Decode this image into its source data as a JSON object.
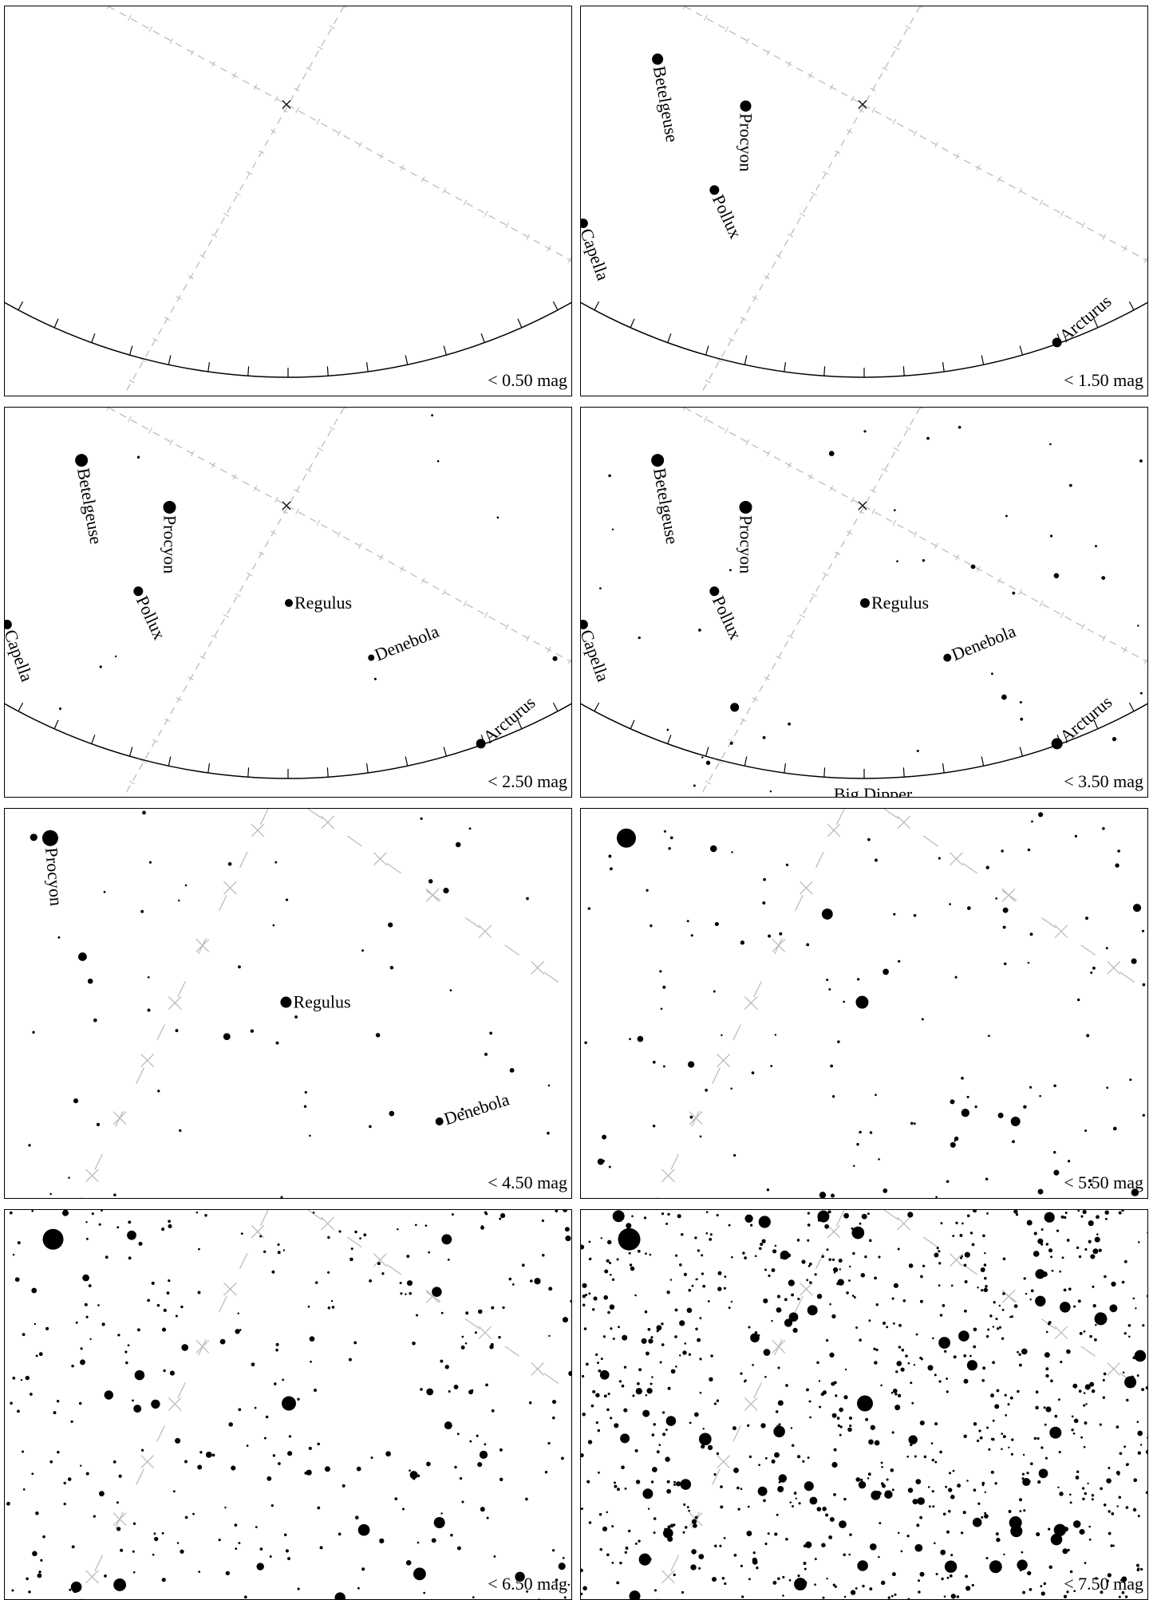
{
  "panels": [
    {
      "label": "< 0.50 mag",
      "mode": "wide",
      "limit_mag": 0.5,
      "stars": []
    },
    {
      "label": "< 1.50 mag",
      "mode": "wide",
      "limit_mag": 1.5,
      "stars": [
        {
          "name": "Betelgeuse",
          "lx": 0.135,
          "ly": 0.135,
          "r": 7,
          "rot": 80
        },
        {
          "name": "Procyon",
          "lx": 0.29,
          "ly": 0.255,
          "r": 7,
          "rot": 90
        },
        {
          "name": "Pollux",
          "lx": 0.235,
          "ly": 0.47,
          "r": 6,
          "rot": 65
        },
        {
          "name": "Capella",
          "lx": 0.004,
          "ly": 0.555,
          "r": 6,
          "rot": 70
        },
        {
          "name": "Arcturus",
          "lx": 0.838,
          "ly": 0.86,
          "r": 6,
          "rot": -40
        }
      ]
    },
    {
      "label": "< 2.50 mag",
      "mode": "wide",
      "limit_mag": 2.5,
      "stars": [
        {
          "name": "Betelgeuse",
          "lx": 0.135,
          "ly": 0.135,
          "r": 8,
          "rot": 80
        },
        {
          "name": "Procyon",
          "lx": 0.29,
          "ly": 0.255,
          "r": 8,
          "rot": 90
        },
        {
          "name": "Pollux",
          "lx": 0.235,
          "ly": 0.47,
          "r": 6,
          "rot": 65
        },
        {
          "name": "Capella",
          "lx": 0.004,
          "ly": 0.555,
          "r": 6,
          "rot": 70
        },
        {
          "name": "Regulus",
          "lx": 0.5,
          "ly": 0.5,
          "r": 5,
          "rot": 0
        },
        {
          "name": "Denebola",
          "lx": 0.645,
          "ly": 0.64,
          "r": 4,
          "rot": -22
        },
        {
          "name": "Arcturus",
          "lx": 0.838,
          "ly": 0.86,
          "r": 6,
          "rot": -40
        }
      ]
    },
    {
      "label": "< 3.50 mag",
      "mode": "wide",
      "limit_mag": 3.5,
      "stars": [
        {
          "name": "Betelgeuse",
          "lx": 0.135,
          "ly": 0.135,
          "r": 8,
          "rot": 80
        },
        {
          "name": "Procyon",
          "lx": 0.29,
          "ly": 0.255,
          "r": 8,
          "rot": 90
        },
        {
          "name": "Pollux",
          "lx": 0.235,
          "ly": 0.47,
          "r": 6,
          "rot": 65
        },
        {
          "name": "Capella",
          "lx": 0.004,
          "ly": 0.555,
          "r": 6,
          "rot": 70
        },
        {
          "name": "Regulus",
          "lx": 0.5,
          "ly": 0.5,
          "r": 6,
          "rot": 0
        },
        {
          "name": "Denebola",
          "lx": 0.645,
          "ly": 0.64,
          "r": 5,
          "rot": -22
        },
        {
          "name": "Arcturus",
          "lx": 0.838,
          "ly": 0.86,
          "r": 7,
          "rot": -40
        },
        {
          "name": "Big Dipper",
          "lx": 0.445,
          "ly": 0.99,
          "r": 0,
          "rot": 0
        }
      ]
    },
    {
      "label": "< 4.50 mag",
      "mode": "zoom",
      "limit_mag": 4.5,
      "stars": [
        {
          "name": "Procyon",
          "lx": 0.08,
          "ly": 0.075,
          "r": 10,
          "rot": 85
        },
        {
          "name": "Regulus",
          "lx": 0.495,
          "ly": 0.495,
          "r": 7,
          "rot": 0
        },
        {
          "name": "Denebola",
          "lx": 0.765,
          "ly": 0.8,
          "r": 5,
          "rot": -18
        }
      ]
    },
    {
      "label": "< 5.50 mag",
      "mode": "zoom",
      "limit_mag": 5.5,
      "stars": [
        {
          "name": "",
          "lx": 0.08,
          "ly": 0.075,
          "r": 12,
          "rot": 0
        },
        {
          "name": "",
          "lx": 0.495,
          "ly": 0.495,
          "r": 8,
          "rot": 0
        },
        {
          "name": "",
          "lx": 0.765,
          "ly": 0.8,
          "r": 6,
          "rot": 0
        }
      ]
    },
    {
      "label": "< 6.50 mag",
      "mode": "zoom",
      "limit_mag": 6.5,
      "stars": [
        {
          "name": "",
          "lx": 0.085,
          "ly": 0.075,
          "r": 13,
          "rot": 0
        },
        {
          "name": "",
          "lx": 0.5,
          "ly": 0.495,
          "r": 9,
          "rot": 0
        },
        {
          "name": "",
          "lx": 0.765,
          "ly": 0.8,
          "r": 7,
          "rot": 0
        }
      ]
    },
    {
      "label": "< 7.50 mag",
      "mode": "zoom",
      "limit_mag": 7.5,
      "stars": [
        {
          "name": "",
          "lx": 0.085,
          "ly": 0.075,
          "r": 14,
          "rot": 0
        },
        {
          "name": "",
          "lx": 0.5,
          "ly": 0.495,
          "r": 10,
          "rot": 0
        },
        {
          "name": "",
          "lx": 0.765,
          "ly": 0.8,
          "r": 8,
          "rot": 0
        }
      ]
    }
  ]
}
